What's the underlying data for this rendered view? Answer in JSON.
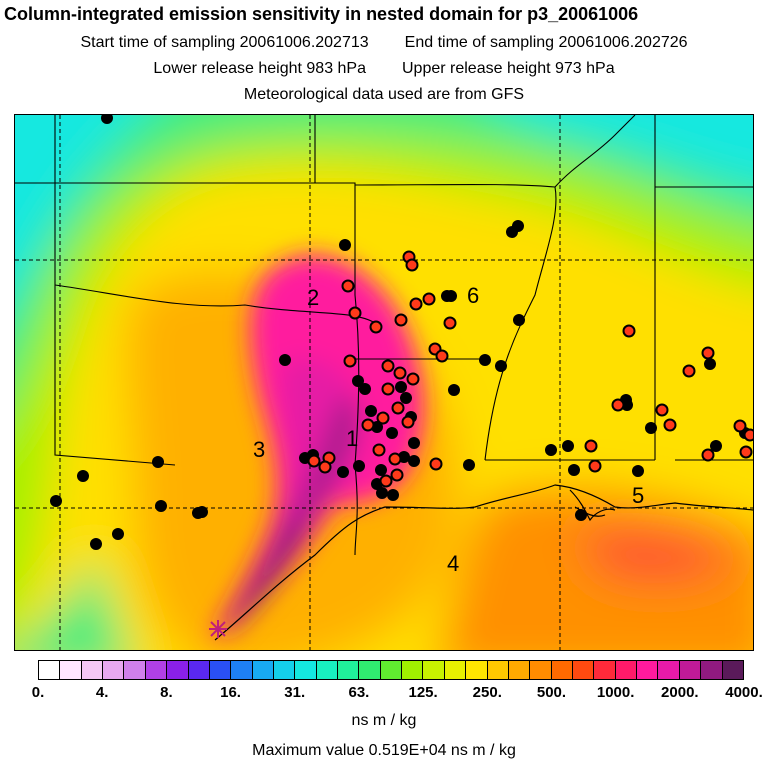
{
  "header": {
    "title": "Column-integrated emission sensitivity in nested domain for p3_20061006",
    "start_label": "Start time of sampling 20061006.202713",
    "end_label": "End time of sampling 20061006.202726",
    "lower_label": "Lower release height  983 hPa",
    "upper_label": "Upper release height  973 hPa",
    "met_label": "Meteorological data used are from GFS"
  },
  "map": {
    "region_labels": [
      "1",
      "2",
      "3",
      "4",
      "5",
      "6"
    ],
    "colors": {
      "background": "#ffe000",
      "cyan": "#14e8e0",
      "green": "#3ef07a",
      "yellow_green": "#d8f000",
      "orange": "#ff9a00",
      "magenta": "#ff1a9e",
      "purple": "#9a2a9a",
      "marker_black": "#000000",
      "marker_red": "#ff3a1a"
    }
  },
  "colorbar": {
    "colors": [
      "#ffffff",
      "#ffe6ff",
      "#f5c8f5",
      "#e8a8f0",
      "#d080ea",
      "#b040e6",
      "#8a20e8",
      "#5a28f0",
      "#2a50f4",
      "#1e80f4",
      "#18aaf2",
      "#14d0ea",
      "#14e8e0",
      "#18f0c0",
      "#20f09a",
      "#30ec70",
      "#60ec30",
      "#a0f000",
      "#c8f200",
      "#e8f000",
      "#ffe600",
      "#ffc800",
      "#ffaa00",
      "#ff8c00",
      "#ff6a00",
      "#ff4a10",
      "#ff2a3a",
      "#ff1a6a",
      "#ff1a9e",
      "#e81aa8",
      "#c01a98",
      "#901a80",
      "#5a1a5a"
    ],
    "tick_labels": [
      "0.",
      "4.",
      "8.",
      "16.",
      "31.",
      "63.",
      "125.",
      "250.",
      "500.",
      "1000.",
      "2000.",
      "4000."
    ],
    "units": "ns m / kg"
  },
  "footer": {
    "maximum": "Maximum value  0.519E+04 ns m / kg"
  }
}
